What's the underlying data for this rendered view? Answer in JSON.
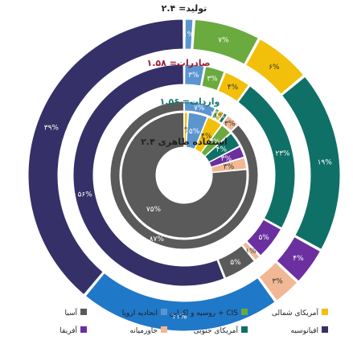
{
  "chart_data": {
    "type": "pie",
    "variant": "nested-donut",
    "rings": [
      {
        "title": "تولید= ۲.۴",
        "title_color": "#222222",
        "slices": [
          {
            "category": "انحادیه اروپا",
            "value": 1,
            "label": "۱%"
          },
          {
            "category": "روسیه و اکراین + CIS",
            "value": 7,
            "label": "۷%"
          },
          {
            "category": "آمریکای شمالی",
            "value": 6,
            "label": "۶%"
          },
          {
            "category": "آمریکای جنوبی",
            "value": 19,
            "label": "۱۹%"
          },
          {
            "category": "آفریقا",
            "value": 4,
            "label": "۴%"
          },
          {
            "category": "خاورمیانه",
            "value": 3,
            "label": "۳%"
          },
          {
            "category": "آسیا",
            "value": 21,
            "label": "۲۱%"
          },
          {
            "category": "اقیانوسیه",
            "value": 39,
            "label": "۳۹%"
          }
        ]
      },
      {
        "title": "صادرات= ۱.۵۸",
        "title_color": "#9e1b32",
        "slices": [
          {
            "category": "انحادیه اروپا",
            "value": 3,
            "label": "۳%"
          },
          {
            "category": "روسیه و اکراین + CIS",
            "value": 3,
            "label": "۳%"
          },
          {
            "category": "آمریکای شمالی",
            "value": 4,
            "label": "۴%"
          },
          {
            "category": "آمریکای جنوبی",
            "value": 23,
            "label": "۲۳%"
          },
          {
            "category": "آفریقا",
            "value": 5,
            "label": "۵%"
          },
          {
            "category": "خاورمیانه",
            "value": 1,
            "label": "۱%"
          },
          {
            "category": "آسیا",
            "value": 5,
            "label": "۵%"
          },
          {
            "category": "اقیانوسیه",
            "value": 56,
            "label": "۵۶%"
          }
        ]
      },
      {
        "title": "واردات= ۱.۵۶",
        "title_color": "#177a6f",
        "slices": [
          {
            "category": "انحادیه اروپا",
            "value": 7,
            "label": "۷%"
          },
          {
            "category": "روسیه و اکراین + CIS",
            "value": 1,
            "label": "۱%"
          },
          {
            "category": "آمریکای شمالی",
            "value": 1,
            "label": "۱%"
          },
          {
            "category": "آمریکای جنوبی",
            "value": 1,
            "label": "۱%"
          },
          {
            "category": "خاورمیانه",
            "value": 3,
            "label": "۳%"
          },
          {
            "category": "آسیا",
            "value": 87,
            "label": "۸۷%"
          }
        ]
      },
      {
        "title": "استفاده ظاهری ۲.۴",
        "title_color": "#222222",
        "slices": [
          {
            "category": "آمریکای شمالی",
            "value": 1,
            "label": "۱%"
          },
          {
            "category": "انحادیه اروپا",
            "value": 5,
            "label": "۵%"
          },
          {
            "category": "آمریکای شمالی",
            "value": 4,
            "label": "۴%"
          },
          {
            "category": "روسیه و اکراین + CIS",
            "value": 3,
            "label": "۳%"
          },
          {
            "category": "آمریکای جنوبی",
            "value": 4,
            "label": "۴%"
          },
          {
            "category": "آفریقا",
            "value": 3,
            "label": "۳%"
          },
          {
            "category": "خاورمیانه",
            "value": 3,
            "label": "۳%"
          },
          {
            "category": "آسیا",
            "value": 75,
            "label": "۷۵%"
          }
        ]
      }
    ],
    "legend": [
      {
        "name": "آمریکای شمالی",
        "color": "#f2c00a"
      },
      {
        "name": "روسیه و اکراین + CIS",
        "color": "#6aaa3f"
      },
      {
        "name": "انحادیه اروپا",
        "color": "#5b95cf"
      },
      {
        "name": "آسیا",
        "color": "#5a5a5a"
      },
      {
        "name": "اقیانوسیه",
        "color": "#353068"
      },
      {
        "name": "آمریکای جنوبی",
        "color": "#0f7067"
      },
      {
        "name": "خاورمیانه",
        "color": "#f0b894"
      },
      {
        "name": "آفریقا",
        "color": "#6b2fa0"
      }
    ],
    "colors": {
      "انحادیه اروپا": "#5b95cf",
      "روسیه و اکراین + CIS": "#6aaa3f",
      "آمریکای شمالی": "#f2c00a",
      "آمریکای جنوبی": "#0f7067",
      "آفریقا": "#6b2fa0",
      "خاورمیانه": "#f0b894",
      "آسیا": "#5a5a5a",
      "اقیانوسیه": "#353068",
      "آسیا-outer": "#1f78c8"
    }
  }
}
